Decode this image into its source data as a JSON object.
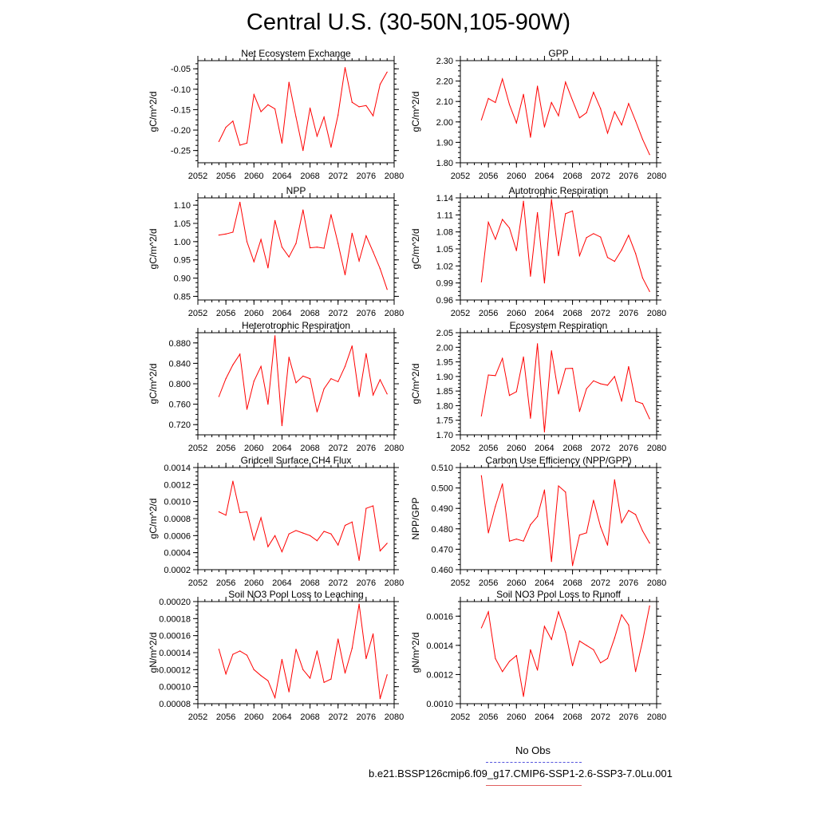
{
  "title": "Central U.S. (30-50N,105-90W)",
  "colors": {
    "line": "#ff0000",
    "axis": "#000000",
    "obs": "#5555dd",
    "model": "#e06060"
  },
  "legend": [
    {
      "label": "No Obs",
      "style": "dashed",
      "color": "#5555dd"
    },
    {
      "label": "b.e21.BSSP126cmip6.f09_g17.CMIP6-SSP1-2.6-SSP3-7.0Lu.001",
      "style": "solid",
      "color": "#e06060"
    }
  ],
  "chart_data": [
    {
      "type": "line",
      "title": "Net Ecosystem Exchange",
      "ylabel": "gC/m^2/d",
      "xlim": [
        2052,
        2080
      ],
      "xticks": [
        "2052",
        "2056",
        "2060",
        "2064",
        "2068",
        "2072",
        "2076",
        "2080"
      ],
      "ylim": [
        -0.28,
        -0.03
      ],
      "yticks": [
        "-0.05",
        "-0.10",
        "-0.15",
        "-0.20",
        "-0.25"
      ],
      "x": [
        2055,
        2056,
        2057,
        2058,
        2059,
        2060,
        2061,
        2062,
        2063,
        2064,
        2065,
        2066,
        2067,
        2068,
        2069,
        2070,
        2071,
        2072,
        2073,
        2074,
        2075,
        2076,
        2077,
        2078,
        2079
      ],
      "values": [
        -0.228,
        -0.193,
        -0.178,
        -0.237,
        -0.232,
        -0.113,
        -0.155,
        -0.138,
        -0.148,
        -0.232,
        -0.083,
        -0.168,
        -0.25,
        -0.146,
        -0.215,
        -0.168,
        -0.242,
        -0.163,
        -0.047,
        -0.132,
        -0.143,
        -0.14,
        -0.165,
        -0.088,
        -0.058
      ]
    },
    {
      "type": "line",
      "title": "GPP",
      "ylabel": "gC/m^2/d",
      "xlim": [
        2052,
        2080
      ],
      "xticks": [
        "2052",
        "2056",
        "2060",
        "2064",
        "2068",
        "2072",
        "2076",
        "2080"
      ],
      "ylim": [
        1.8,
        2.3
      ],
      "yticks": [
        "2.30",
        "2.20",
        "2.10",
        "2.00",
        "1.90",
        "1.80"
      ],
      "x": [
        2055,
        2056,
        2057,
        2058,
        2059,
        2060,
        2061,
        2062,
        2063,
        2064,
        2065,
        2066,
        2067,
        2068,
        2069,
        2070,
        2071,
        2072,
        2073,
        2074,
        2075,
        2076,
        2077,
        2078,
        2079
      ],
      "values": [
        2.01,
        2.115,
        2.095,
        2.21,
        2.085,
        1.995,
        2.135,
        1.925,
        2.175,
        1.975,
        2.095,
        2.03,
        2.195,
        2.105,
        2.02,
        2.045,
        2.145,
        2.065,
        1.945,
        2.05,
        1.985,
        2.09,
        2.005,
        1.915,
        1.84
      ]
    },
    {
      "type": "line",
      "title": "NPP",
      "ylabel": "gC/m^2/d",
      "xlim": [
        2052,
        2080
      ],
      "xticks": [
        "2052",
        "2056",
        "2060",
        "2064",
        "2068",
        "2072",
        "2076",
        "2080"
      ],
      "ylim": [
        0.84,
        1.12
      ],
      "yticks": [
        "1.10",
        "1.05",
        "1.00",
        "0.95",
        "0.90",
        "0.85"
      ],
      "x": [
        2055,
        2056,
        2057,
        2058,
        2059,
        2060,
        2061,
        2062,
        2063,
        2064,
        2065,
        2066,
        2067,
        2068,
        2069,
        2070,
        2071,
        2072,
        2073,
        2074,
        2075,
        2076,
        2077,
        2078,
        2079
      ],
      "values": [
        1.018,
        1.021,
        1.026,
        1.108,
        1.0,
        0.945,
        1.006,
        0.928,
        1.058,
        0.985,
        0.958,
        0.995,
        1.087,
        0.983,
        0.985,
        0.982,
        1.074,
        0.995,
        0.909,
        1.023,
        0.947,
        1.016,
        0.972,
        0.926,
        0.869
      ]
    },
    {
      "type": "line",
      "title": "Autotrophic Respiration",
      "ylabel": "gC/m^2/d",
      "xlim": [
        2052,
        2080
      ],
      "xticks": [
        "2052",
        "2056",
        "2060",
        "2064",
        "2068",
        "2072",
        "2076",
        "2080"
      ],
      "ylim": [
        0.96,
        1.14
      ],
      "yticks": [
        "1.14",
        "1.11",
        "1.08",
        "1.05",
        "1.02",
        "0.99",
        "0.96"
      ],
      "x": [
        2055,
        2056,
        2057,
        2058,
        2059,
        2060,
        2061,
        2062,
        2063,
        2064,
        2065,
        2066,
        2067,
        2068,
        2069,
        2070,
        2071,
        2072,
        2073,
        2074,
        2075,
        2076,
        2077,
        2078,
        2079
      ],
      "values": [
        0.992,
        1.097,
        1.067,
        1.102,
        1.087,
        1.047,
        1.134,
        1.002,
        1.114,
        0.99,
        1.137,
        1.038,
        1.112,
        1.117,
        1.038,
        1.07,
        1.077,
        1.071,
        1.035,
        1.028,
        1.048,
        1.074,
        1.042,
        0.999,
        0.975
      ]
    },
    {
      "type": "line",
      "title": "Heterotrophic Respiration",
      "ylabel": "gC/m^2/d",
      "xlim": [
        2052,
        2080
      ],
      "xticks": [
        "2052",
        "2056",
        "2060",
        "2064",
        "2068",
        "2072",
        "2076",
        "2080"
      ],
      "ylim": [
        0.7,
        0.9
      ],
      "yticks": [
        "0.880",
        "0.840",
        "0.800",
        "0.760",
        "0.720"
      ],
      "x": [
        2055,
        2056,
        2057,
        2058,
        2059,
        2060,
        2061,
        2062,
        2063,
        2064,
        2065,
        2066,
        2067,
        2068,
        2069,
        2070,
        2071,
        2072,
        2073,
        2074,
        2075,
        2076,
        2077,
        2078,
        2079
      ],
      "values": [
        0.775,
        0.81,
        0.837,
        0.858,
        0.75,
        0.805,
        0.834,
        0.76,
        0.894,
        0.718,
        0.852,
        0.802,
        0.815,
        0.81,
        0.745,
        0.79,
        0.81,
        0.804,
        0.834,
        0.874,
        0.775,
        0.859,
        0.778,
        0.808,
        0.78
      ]
    },
    {
      "type": "line",
      "title": "Ecosystem Respiration",
      "ylabel": "gC/m^2/d",
      "xlim": [
        2052,
        2080
      ],
      "xticks": [
        "2052",
        "2056",
        "2060",
        "2064",
        "2068",
        "2072",
        "2076",
        "2080"
      ],
      "ylim": [
        1.7,
        2.05
      ],
      "yticks": [
        "2.05",
        "2.00",
        "1.95",
        "1.90",
        "1.85",
        "1.80",
        "1.75",
        "1.70"
      ],
      "x": [
        2055,
        2056,
        2057,
        2058,
        2059,
        2060,
        2061,
        2062,
        2063,
        2064,
        2065,
        2066,
        2067,
        2068,
        2069,
        2070,
        2071,
        2072,
        2073,
        2074,
        2075,
        2076,
        2077,
        2078,
        2079
      ],
      "values": [
        1.765,
        1.905,
        1.903,
        1.962,
        1.835,
        1.848,
        1.967,
        1.757,
        2.012,
        1.71,
        1.988,
        1.84,
        1.927,
        1.928,
        1.78,
        1.858,
        1.885,
        1.875,
        1.87,
        1.9,
        1.815,
        1.934,
        1.815,
        1.807,
        1.755
      ]
    },
    {
      "type": "line",
      "title": "Gridcell Surface CH4 Flux",
      "ylabel": "gC/m^2/d",
      "xlim": [
        2052,
        2080
      ],
      "xticks": [
        "2052",
        "2056",
        "2060",
        "2064",
        "2068",
        "2072",
        "2076",
        "2080"
      ],
      "ylim": [
        0.0002,
        0.0014
      ],
      "yticks": [
        "0.0014",
        "0.0012",
        "0.0010",
        "0.0008",
        "0.0006",
        "0.0004",
        "0.0002"
      ],
      "x": [
        2055,
        2056,
        2057,
        2058,
        2059,
        2060,
        2061,
        2062,
        2063,
        2064,
        2065,
        2066,
        2067,
        2068,
        2069,
        2070,
        2071,
        2072,
        2073,
        2074,
        2075,
        2076,
        2077,
        2078,
        2079
      ],
      "values": [
        0.00088,
        0.00084,
        0.00124,
        0.00087,
        0.00088,
        0.00055,
        0.00081,
        0.00047,
        0.0006,
        0.00041,
        0.00062,
        0.00066,
        0.00063,
        0.0006,
        0.00054,
        0.00065,
        0.00062,
        0.00049,
        0.00072,
        0.00076,
        0.00031,
        0.00092,
        0.00095,
        0.00042,
        0.00051
      ]
    },
    {
      "type": "line",
      "title": "Carbon Use Efficiency (NPP/GPP)",
      "ylabel": "NPP/GPP",
      "xlim": [
        2052,
        2080
      ],
      "xticks": [
        "2052",
        "2056",
        "2060",
        "2064",
        "2068",
        "2072",
        "2076",
        "2080"
      ],
      "ylim": [
        0.46,
        0.51
      ],
      "yticks": [
        "0.510",
        "0.500",
        "0.490",
        "0.480",
        "0.470",
        "0.460"
      ],
      "x": [
        2055,
        2056,
        2057,
        2058,
        2059,
        2060,
        2061,
        2062,
        2063,
        2064,
        2065,
        2066,
        2067,
        2068,
        2069,
        2070,
        2071,
        2072,
        2073,
        2074,
        2075,
        2076,
        2077,
        2078,
        2079
      ],
      "values": [
        0.506,
        0.478,
        0.491,
        0.502,
        0.474,
        0.475,
        0.474,
        0.482,
        0.486,
        0.499,
        0.464,
        0.501,
        0.498,
        0.462,
        0.477,
        0.478,
        0.494,
        0.481,
        0.472,
        0.504,
        0.483,
        0.489,
        0.487,
        0.479,
        0.473
      ]
    },
    {
      "type": "line",
      "title": "Soil NO3 Pool Loss to Leaching",
      "ylabel": "gN/m^2/d",
      "xlim": [
        2052,
        2080
      ],
      "xticks": [
        "2052",
        "2056",
        "2060",
        "2064",
        "2068",
        "2072",
        "2076",
        "2080"
      ],
      "ylim": [
        8e-05,
        0.0002
      ],
      "yticks": [
        "0.00020",
        "0.00018",
        "0.00016",
        "0.00014",
        "0.00012",
        "0.00010",
        "0.00008"
      ],
      "x": [
        2055,
        2056,
        2057,
        2058,
        2059,
        2060,
        2061,
        2062,
        2063,
        2064,
        2065,
        2066,
        2067,
        2068,
        2069,
        2070,
        2071,
        2072,
        2073,
        2074,
        2075,
        2076,
        2077,
        2078,
        2079
      ],
      "values": [
        0.000144,
        0.000115,
        0.000138,
        0.000142,
        0.000137,
        0.00012,
        0.000113,
        0.000107,
        8.7e-05,
        0.000132,
        9.4e-05,
        0.000144,
        0.00012,
        0.00011,
        0.000142,
        0.000105,
        0.000109,
        0.000156,
        0.000116,
        0.000145,
        0.000197,
        0.000133,
        0.000162,
        8.6e-05,
        0.000114
      ]
    },
    {
      "type": "line",
      "title": "Soil NO3 Pool Loss to Runoff",
      "ylabel": "gN/m^2/d",
      "xlim": [
        2052,
        2080
      ],
      "xticks": [
        "2052",
        "2056",
        "2060",
        "2064",
        "2068",
        "2072",
        "2076",
        "2080"
      ],
      "ylim": [
        0.001,
        0.0017
      ],
      "yticks": [
        "0.0016",
        "0.0014",
        "0.0012",
        "0.0010"
      ],
      "x": [
        2055,
        2056,
        2057,
        2058,
        2059,
        2060,
        2061,
        2062,
        2063,
        2064,
        2065,
        2066,
        2067,
        2068,
        2069,
        2070,
        2071,
        2072,
        2073,
        2074,
        2075,
        2076,
        2077,
        2078,
        2079
      ],
      "values": [
        0.00152,
        0.00163,
        0.00131,
        0.00122,
        0.00129,
        0.00133,
        0.00105,
        0.00137,
        0.00123,
        0.00153,
        0.00144,
        0.00163,
        0.00149,
        0.00126,
        0.00143,
        0.0014,
        0.00137,
        0.00128,
        0.00131,
        0.00145,
        0.00161,
        0.00154,
        0.00122,
        0.00143,
        0.00167
      ]
    }
  ]
}
